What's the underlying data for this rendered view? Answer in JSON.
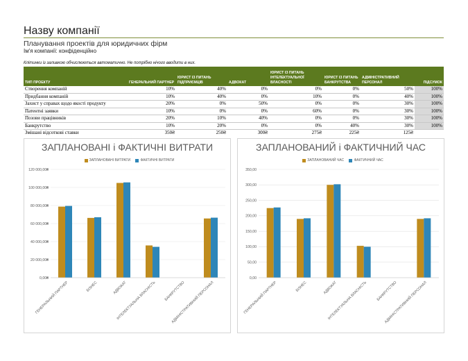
{
  "header": {
    "title": "Назву компанії",
    "subtitle": "Планування проектів для юридичних фірм",
    "company_label": "Ім'я компанії: конфіденційно",
    "note": "Клітинки із заливкою обчислюються автоматично. Не потрібно нічого вводити в них."
  },
  "table": {
    "columns": [
      "ТИП ПРОЕКТУ",
      "ГЕНЕРАЛЬНИЙ ПАРТНЕР",
      "ЮРИСТ ІЗ ПИТАНЬ ПІДПРИЄМЦІВ",
      "АДВОКАТ",
      "ЮРИСТ ІЗ ПИТАНЬ ІНТЕЛЕКТУАЛЬНОЇ ВЛАСНОСТІ",
      "ЮРИСТ ІЗ ПИТАНЬ БАНКРУТСТВА",
      "АДМІНІСТРАТИВНИЙ ПЕРСОНАЛ",
      "ПІДСУМОК"
    ],
    "rows": [
      {
        "type": "Створення компаній",
        "values": [
          "10%",
          "40%",
          "0%",
          "0%",
          "0%",
          "50%"
        ],
        "total": "100%"
      },
      {
        "type": "Придбання компаній",
        "values": [
          "10%",
          "40%",
          "0%",
          "10%",
          "0%",
          "40%"
        ],
        "total": "100%"
      },
      {
        "type": "Захист у справах щодо якості продукту",
        "values": [
          "20%",
          "0%",
          "50%",
          "0%",
          "0%",
          "30%"
        ],
        "total": "100%"
      },
      {
        "type": "Патентні заявки",
        "values": [
          "10%",
          "0%",
          "0%",
          "60%",
          "0%",
          "30%"
        ],
        "total": "100%"
      },
      {
        "type": "Позови працівників",
        "values": [
          "20%",
          "10%",
          "40%",
          "0%",
          "0%",
          "30%"
        ],
        "total": "100%"
      },
      {
        "type": "Банкрутство",
        "values": [
          "10%",
          "20%",
          "0%",
          "0%",
          "40%",
          "30%"
        ],
        "total": "100%"
      }
    ],
    "rates": {
      "label": "Змішані відсоткові ставки",
      "values": [
        "350₴",
        "250₴",
        "300₴",
        "275₴",
        "225₴",
        "125₴"
      ]
    }
  },
  "chart_data": [
    {
      "type": "bar",
      "title": "ЗАПЛАНОВАНІ і ФАКТИЧНІ ВИТРАТИ",
      "categories": [
        "ГЕНЕРАЛЬНИЙ ПАРТНЕР",
        "БІЗНЕС",
        "АДВОКАТ",
        "ІНТЕЛЕКТУАЛЬНА ВЛАСНІСТЬ",
        "БАНКРУТСТВО",
        "АДМІНІСТРАТИВНИЙ ПЕРСОНАЛ"
      ],
      "series": [
        {
          "name": "ЗАПЛАНОВАНІ ВИТРАТИ",
          "values": [
            78750,
            66250,
            105000,
            35750,
            0,
            65625
          ],
          "color": "#bf8c1e"
        },
        {
          "name": "ФАКТИЧНІ ВИТРАТИ",
          "values": [
            79500,
            67000,
            105600,
            34200,
            0,
            66500
          ],
          "color": "#2e86b8"
        }
      ],
      "ylim": [
        0,
        120000
      ],
      "yticks": [
        "0,00₴",
        "20 000,00₴",
        "40 000,00₴",
        "60 000,00₴",
        "80 000,00₴",
        "100 000,00₴",
        "120 000,00₴"
      ],
      "grid": true,
      "legend": "top"
    },
    {
      "type": "bar",
      "title": "ЗАПЛАНОВАНИЙ і ФАКТИЧНИЙ ЧАС",
      "categories": [
        "ГЕНЕРАЛЬНИЙ ПАРТНЕР",
        "БІЗНЕС",
        "АДВОКАТ",
        "ІНТЕЛЕКТУАЛЬНА ВЛАСНІСТЬ",
        "БАНКРУТСТВО",
        "АДМІНІСТРАТИВНИЙ ПЕРСОНАЛ"
      ],
      "series": [
        {
          "name": "ЗАПЛАНОВАНИЙ ЧАС",
          "values": [
            225,
            190,
            300,
            103,
            0,
            190
          ],
          "color": "#bf8c1e"
        },
        {
          "name": "ФАКТИЧНИЙ ЧАС",
          "values": [
            227,
            192,
            302,
            100,
            0,
            192
          ],
          "color": "#2e86b8"
        }
      ],
      "ylim": [
        0,
        350
      ],
      "yticks": [
        "0,00",
        "50,00",
        "100,00",
        "150,00",
        "200,00",
        "250,00",
        "300,00",
        "350,00"
      ],
      "grid": true,
      "legend": "top"
    }
  ]
}
